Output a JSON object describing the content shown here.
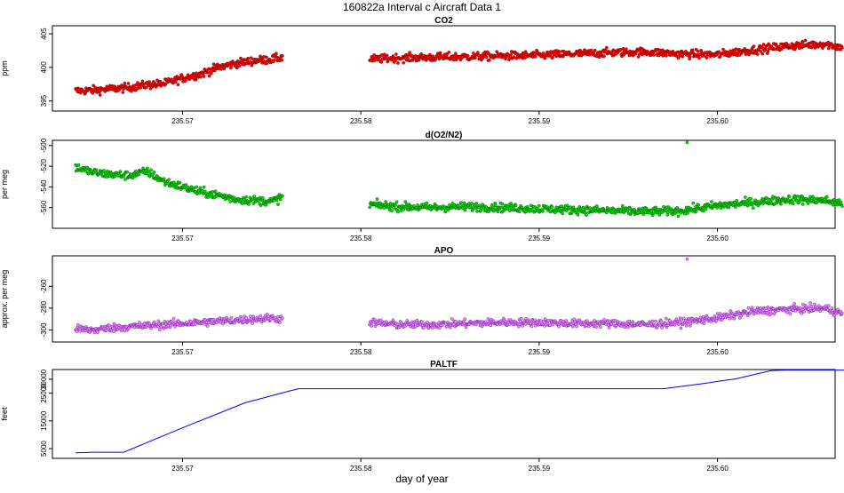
{
  "figure": {
    "title": "160822a   Interval c Aircraft Data 1",
    "xlabel": "day of year"
  },
  "chart_data": [
    {
      "type": "scatter",
      "title": "CO2",
      "ylabel": "ppm",
      "ylim": [
        393.5,
        406.2
      ],
      "xlim": [
        235.5627,
        235.6066
      ],
      "xticks": [
        "235.57",
        "235.58",
        "235.59",
        "235.60"
      ],
      "yticks": [
        "395",
        "400",
        "405"
      ],
      "colors": {
        "fill": "#ff0000",
        "edge": "#880000"
      },
      "x": [
        235.564,
        235.565,
        235.566,
        235.567,
        235.568,
        235.569,
        235.57,
        235.571,
        235.572,
        235.573,
        235.574,
        235.575,
        235.5756,
        235.5805,
        235.582,
        235.584,
        235.586,
        235.588,
        235.59,
        235.592,
        235.594,
        235.596,
        235.598,
        235.6,
        235.602,
        235.604,
        235.606,
        235.607
      ],
      "y": [
        396.5,
        396.6,
        396.8,
        397.0,
        397.4,
        397.6,
        398.4,
        399.0,
        400.0,
        400.6,
        401.0,
        401.2,
        401.5,
        401.2,
        401.4,
        401.5,
        401.6,
        401.7,
        401.8,
        402.0,
        402.2,
        402.3,
        402.0,
        401.9,
        402.6,
        403.2,
        403.5,
        403.0
      ],
      "noise": 0.6
    },
    {
      "type": "scatter",
      "title": "d(O2/N2)",
      "ylabel": "per meg",
      "ylim": [
        -580,
        -495
      ],
      "xlim": [
        235.5627,
        235.6066
      ],
      "xticks": [
        "235.57",
        "235.58",
        "235.59",
        "235.60"
      ],
      "yticks": [
        "-560",
        "-540",
        "-520",
        "-500"
      ],
      "colors": {
        "fill": "#00e000",
        "edge": "#006000"
      },
      "x": [
        235.564,
        235.565,
        235.566,
        235.567,
        235.568,
        235.569,
        235.57,
        235.571,
        235.572,
        235.573,
        235.574,
        235.575,
        235.5756,
        235.5805,
        235.582,
        235.584,
        235.586,
        235.588,
        235.59,
        235.592,
        235.594,
        235.596,
        235.598,
        235.6,
        235.602,
        235.604,
        235.606,
        235.607
      ],
      "y": [
        -521,
        -526,
        -528,
        -529,
        -525,
        -535,
        -540,
        -545,
        -548,
        -552,
        -553,
        -554,
        -550,
        -557,
        -559,
        -560,
        -559,
        -560,
        -561,
        -562,
        -563,
        -564,
        -563,
        -558,
        -555,
        -552,
        -553,
        -556
      ],
      "noise": 4,
      "outliers": [
        [
          235.5983,
          -497
        ]
      ]
    },
    {
      "type": "scatter",
      "title": "APO",
      "ylabel": "approx. per meg",
      "ylim": [
        -311,
        -232
      ],
      "xlim": [
        235.5627,
        235.6066
      ],
      "xticks": [
        "235.57",
        "235.58",
        "235.59",
        "235.60"
      ],
      "yticks": [
        "-300",
        "-280",
        "-260"
      ],
      "colors": {
        "fill": "#ee88ff",
        "edge": "#7722aa"
      },
      "x": [
        235.564,
        235.565,
        235.566,
        235.567,
        235.568,
        235.569,
        235.57,
        235.571,
        235.572,
        235.573,
        235.574,
        235.575,
        235.5756,
        235.5805,
        235.582,
        235.584,
        235.586,
        235.588,
        235.59,
        235.592,
        235.594,
        235.596,
        235.598,
        235.6,
        235.602,
        235.604,
        235.606,
        235.607
      ],
      "y": [
        -299,
        -300,
        -298,
        -297,
        -296,
        -295,
        -294,
        -293,
        -292,
        -291,
        -290,
        -289,
        -290,
        -293,
        -295,
        -295,
        -294,
        -293,
        -293,
        -294,
        -294,
        -295,
        -293,
        -289,
        -283,
        -281,
        -280,
        -285
      ],
      "noise": 3.5,
      "outliers": [
        [
          235.5983,
          -235
        ]
      ]
    },
    {
      "type": "line",
      "title": "PALTF",
      "ylabel": "feet",
      "ylim": [
        1500,
        33500
      ],
      "xlim": [
        235.5627,
        235.6066
      ],
      "xticks": [
        "235.57",
        "235.58",
        "235.59",
        "235.60"
      ],
      "yticks": [
        "5000",
        "15000",
        "25000",
        "30000"
      ],
      "colors": {
        "line": "#0000ff"
      },
      "x": [
        235.564,
        235.565,
        235.5667,
        235.57,
        235.5735,
        235.576,
        235.5765,
        235.58,
        235.59,
        235.597,
        235.5995,
        235.6,
        235.601,
        235.603,
        235.6038,
        235.6072
      ],
      "y": [
        3500,
        3700,
        3700,
        12500,
        21500,
        25800,
        26600,
        26600,
        26600,
        26600,
        28700,
        29200,
        30100,
        33100,
        33300,
        33300
      ]
    }
  ]
}
